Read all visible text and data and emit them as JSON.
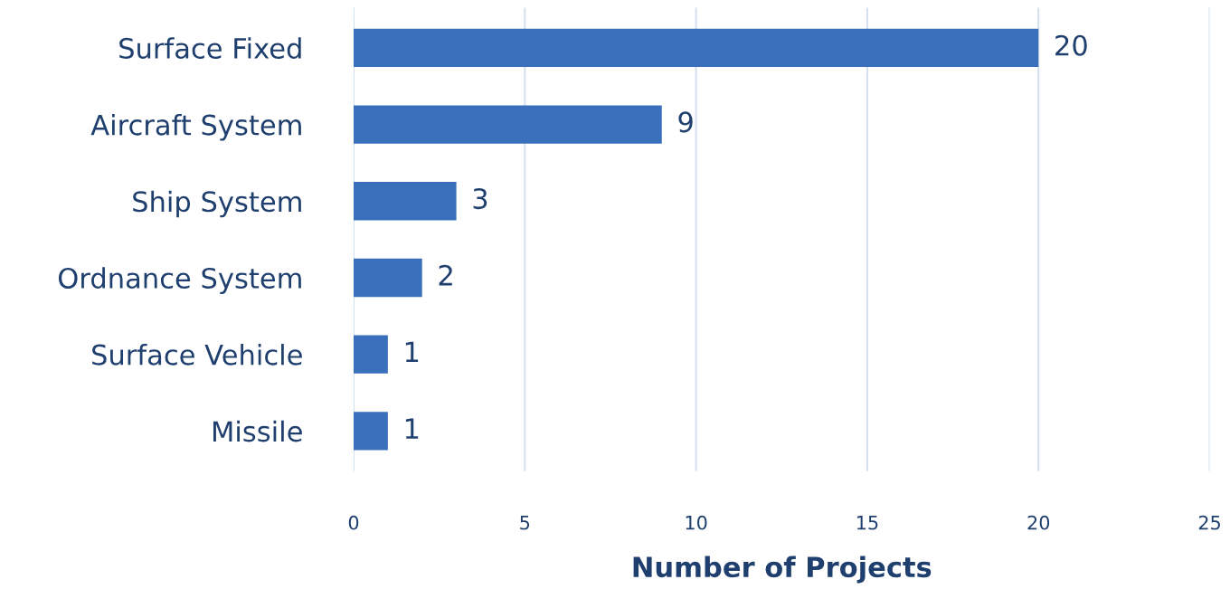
{
  "chart_data": {
    "type": "bar",
    "orientation": "horizontal",
    "xlabel": "Number of Projects",
    "categories": [
      "Surface Fixed",
      "Aircraft System",
      "Ship System",
      "Ordnance System",
      "Surface Vehicle",
      "Missile"
    ],
    "values": [
      20,
      9,
      3,
      2,
      1,
      1
    ],
    "color": "#3a70bb",
    "xlim": [
      0,
      25
    ],
    "xticks": [
      0,
      5,
      10,
      15,
      20,
      25
    ],
    "grid": "x",
    "data_labels": true
  }
}
